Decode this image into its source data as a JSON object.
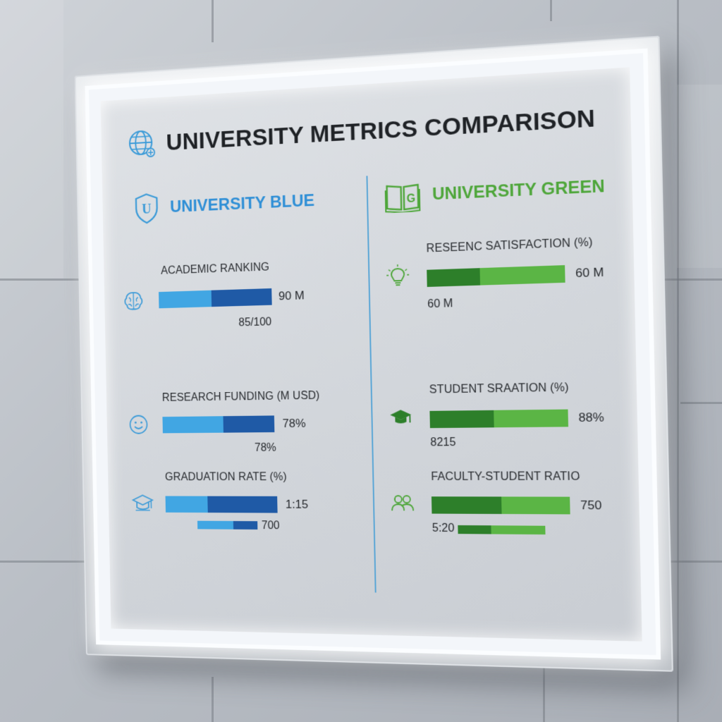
{
  "title": "UNIVERSITY METRICS COMPARISON",
  "colors": {
    "blue_light": "#41a6e3",
    "blue_dark": "#1f5aa6",
    "green_dark": "#2d7f2a",
    "green_light": "#5bb545"
  },
  "blue": {
    "name": "UNIVERSITY BLUE",
    "shield_letter": "U",
    "metrics": [
      {
        "label": "ACADEMIC RANKING",
        "value": "90 M",
        "sub": "85/100",
        "icon": "brain-icon",
        "split": 0.47
      },
      {
        "label": "RESEARCH FUNDING (M USD)",
        "value": "78%",
        "sub": "78%",
        "icon": "smiley-icon",
        "split": 0.55
      },
      {
        "label": "GRADUATION RATE (%)",
        "value": "1:15",
        "sub": "700",
        "icon": "graduation-cap-icon",
        "split": 0.38
      }
    ]
  },
  "green": {
    "name": "UNIVERSITY GREEN",
    "book_letter": "G",
    "metrics": [
      {
        "label": "RESEENC SATISFACTION (%)",
        "value": "60 M",
        "sub": "60 M",
        "icon": "lightbulb-icon",
        "split": 0.39
      },
      {
        "label": "STUDENT SRAATION (%)",
        "value": "88%",
        "sub": "8215",
        "icon": "mortarboard-icon",
        "split": 0.47
      },
      {
        "label": "FACULTY-STUDENT RATIO",
        "value": "750",
        "sub": "5:20",
        "icon": "people-icon",
        "split": 0.51
      }
    ]
  }
}
